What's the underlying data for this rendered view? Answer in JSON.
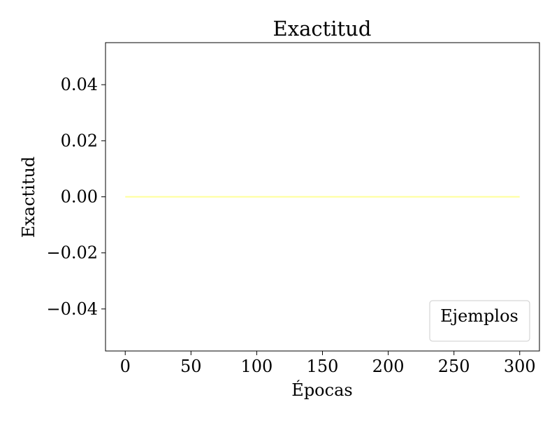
{
  "chart_data": {
    "type": "line",
    "title": "Exactitud",
    "xlabel": "Épocas",
    "ylabel": "Exactitud",
    "xlim": [
      -15,
      315
    ],
    "ylim": [
      -0.055,
      0.055
    ],
    "x_ticks": [
      {
        "value": 0,
        "label": "0"
      },
      {
        "value": 50,
        "label": "50"
      },
      {
        "value": 100,
        "label": "100"
      },
      {
        "value": 150,
        "label": "150"
      },
      {
        "value": 200,
        "label": "200"
      },
      {
        "value": 250,
        "label": "250"
      },
      {
        "value": 300,
        "label": "300"
      }
    ],
    "y_ticks": [
      {
        "value": -0.04,
        "label": "−0.04"
      },
      {
        "value": -0.02,
        "label": "−0.02"
      },
      {
        "value": 0.0,
        "label": "0.00"
      },
      {
        "value": 0.02,
        "label": "0.02"
      },
      {
        "value": 0.04,
        "label": "0.04"
      }
    ],
    "grid": false,
    "legend": {
      "title": "Ejemplos",
      "placement": "lower-right"
    },
    "series": [
      {
        "color": "#ffff99",
        "x": [
          0,
          300
        ],
        "y": [
          0.0,
          0.0
        ]
      }
    ]
  }
}
